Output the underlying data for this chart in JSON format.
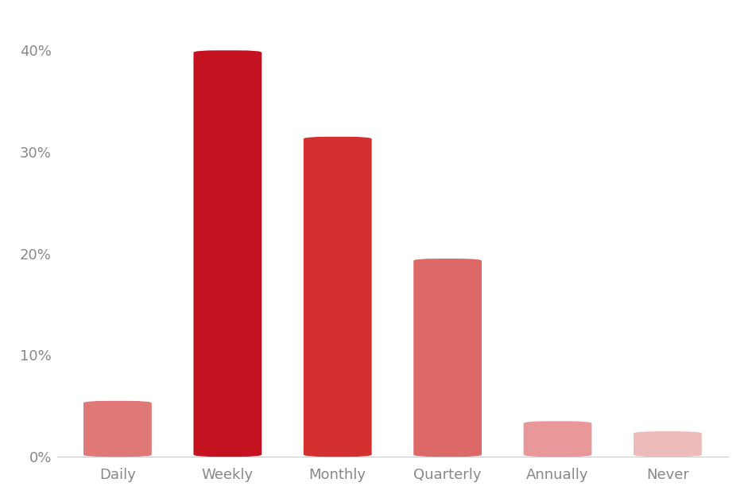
{
  "categories": [
    "Daily",
    "Weekly",
    "Monthly",
    "Quarterly",
    "Annually",
    "Never"
  ],
  "values": [
    5.5,
    40.0,
    31.5,
    19.5,
    3.5,
    2.5
  ],
  "bar_colors": [
    "#e07878",
    "#c41220",
    "#d43030",
    "#dc6868",
    "#e89898",
    "#eebbbb"
  ],
  "background_color": "#ffffff",
  "yticks": [
    0,
    10,
    20,
    30,
    40
  ],
  "ytick_labels": [
    "0%",
    "10%",
    "20%",
    "30%",
    "40%"
  ],
  "ylim": [
    0,
    43
  ],
  "bar_width": 0.62,
  "tick_fontsize": 13,
  "tick_color": "#888888"
}
